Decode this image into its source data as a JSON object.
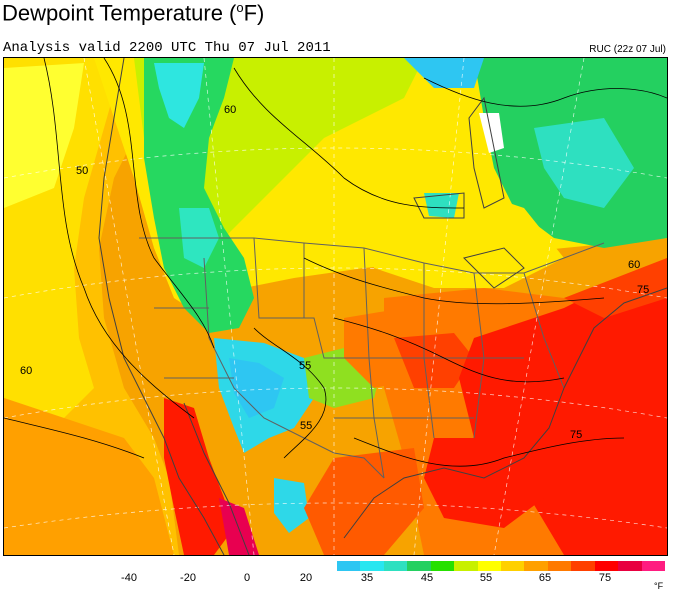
{
  "header": {
    "title_main": "Dewpoint Temperature (",
    "title_degree": "o",
    "title_end": "F)",
    "valid": "Analysis valid 2200 UTC Thu 07 Jul 2011",
    "model": "RUC (22z 07 Jul)"
  },
  "map": {
    "contour_labels": [
      "60",
      "50",
      "60",
      "75",
      "55",
      "55",
      "75",
      "60"
    ]
  },
  "colorbar": {
    "labels": [
      "-40",
      "-20",
      "0",
      "20",
      "35",
      "45",
      "55",
      "65",
      "75"
    ],
    "unit": "°F",
    "colors": [
      "#2ec6f2",
      "#28e6f0",
      "#2ee0c0",
      "#24d060",
      "#26e000",
      "#c8f000",
      "#ffff00",
      "#ffd000",
      "#ffa000",
      "#ff7a00",
      "#ff4000",
      "#ff0000",
      "#e80040",
      "#ff1c80"
    ]
  }
}
